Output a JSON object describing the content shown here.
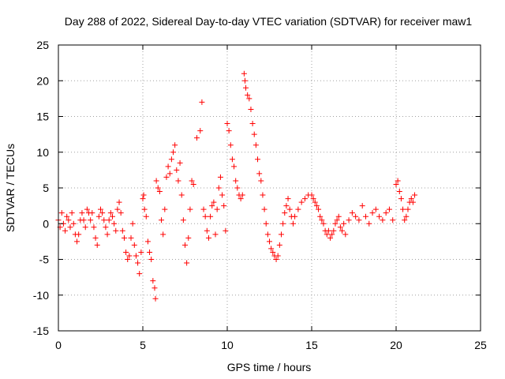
{
  "chart_data": {
    "type": "scatter",
    "title": "Day 288 of 2022, Sidereal Day-to-day VTEC variation (SDTVAR) for receiver maw1",
    "xlabel": "GPS time / hours",
    "ylabel": "SDTVAR / TECUs",
    "xlim": [
      0,
      25
    ],
    "ylim": [
      -15,
      25
    ],
    "xticks": [
      0,
      5,
      10,
      15,
      20,
      25
    ],
    "yticks": [
      -15,
      -10,
      -5,
      0,
      5,
      10,
      15,
      20,
      25
    ],
    "grid": true,
    "legend": "none",
    "marker": "plus",
    "color": "#ff0000",
    "series": [
      {
        "name": "SDTVAR",
        "x": [
          0.0,
          0.1,
          0.2,
          0.3,
          0.4,
          0.5,
          0.6,
          0.7,
          0.8,
          0.9,
          1.0,
          1.1,
          1.2,
          1.3,
          1.4,
          1.5,
          1.6,
          1.7,
          1.8,
          1.9,
          2.0,
          2.1,
          2.2,
          2.3,
          2.4,
          2.5,
          2.6,
          2.7,
          2.8,
          2.9,
          3.0,
          3.1,
          3.2,
          3.3,
          3.4,
          3.5,
          3.6,
          3.7,
          3.8,
          3.9,
          4.0,
          4.1,
          4.2,
          4.3,
          4.4,
          4.5,
          4.6,
          4.7,
          4.8,
          4.9,
          5.0,
          5.05,
          5.1,
          5.2,
          5.3,
          5.4,
          5.5,
          5.6,
          5.7,
          5.75,
          5.8,
          5.9,
          6.0,
          6.1,
          6.2,
          6.3,
          6.4,
          6.5,
          6.6,
          6.7,
          6.8,
          6.9,
          7.0,
          7.1,
          7.2,
          7.3,
          7.4,
          7.5,
          7.6,
          7.7,
          7.8,
          7.9,
          8.0,
          8.2,
          8.4,
          8.5,
          8.6,
          8.7,
          8.8,
          8.9,
          9.0,
          9.1,
          9.2,
          9.3,
          9.4,
          9.5,
          9.6,
          9.7,
          9.8,
          9.9,
          10.0,
          10.1,
          10.2,
          10.3,
          10.4,
          10.5,
          10.6,
          10.7,
          10.8,
          10.9,
          11.0,
          11.05,
          11.1,
          11.2,
          11.3,
          11.4,
          11.5,
          11.6,
          11.7,
          11.8,
          11.9,
          12.0,
          12.1,
          12.2,
          12.3,
          12.4,
          12.5,
          12.6,
          12.7,
          12.8,
          12.9,
          13.0,
          13.1,
          13.2,
          13.3,
          13.4,
          13.5,
          13.6,
          13.7,
          13.8,
          13.9,
          14.0,
          14.2,
          14.4,
          14.6,
          14.8,
          15.0,
          15.1,
          15.2,
          15.3,
          15.4,
          15.5,
          15.6,
          15.7,
          15.8,
          15.9,
          16.0,
          16.1,
          16.2,
          16.3,
          16.4,
          16.5,
          16.6,
          16.7,
          16.8,
          16.9,
          17.0,
          17.2,
          17.4,
          17.6,
          17.8,
          18.0,
          18.2,
          18.4,
          18.6,
          18.8,
          19.0,
          19.2,
          19.4,
          19.6,
          19.8,
          20.0,
          20.1,
          20.2,
          20.3,
          20.4,
          20.5,
          20.6,
          20.7,
          20.8,
          20.9,
          21.0,
          21.1
        ],
        "y": [
          0.5,
          -0.5,
          1.5,
          0.0,
          -1.0,
          1.0,
          0.5,
          -0.5,
          1.5,
          0.0,
          -1.5,
          -2.5,
          -1.5,
          0.5,
          1.5,
          0.5,
          -0.5,
          2.0,
          1.5,
          0.5,
          1.5,
          -0.5,
          -2.0,
          -3.0,
          1.0,
          2.0,
          1.5,
          0.5,
          -0.5,
          -1.5,
          0.5,
          1.5,
          1.0,
          0.0,
          -1.0,
          2.0,
          3.0,
          1.5,
          -1.0,
          -2.0,
          -4.0,
          -5.0,
          -4.5,
          -2.0,
          0.0,
          -3.0,
          -4.5,
          -5.5,
          -7.0,
          -4.0,
          3.5,
          4.0,
          2.0,
          1.0,
          -2.5,
          -4.0,
          -5.0,
          -8.0,
          -9.0,
          -10.5,
          6.0,
          5.0,
          4.5,
          0.5,
          -1.5,
          2.0,
          6.5,
          8.0,
          7.0,
          9.0,
          10.0,
          11.0,
          7.5,
          6.0,
          8.5,
          4.0,
          0.5,
          -3.0,
          -5.5,
          -2.0,
          2.0,
          6.0,
          5.5,
          12.0,
          13.0,
          17.0,
          2.0,
          1.0,
          -1.0,
          -2.0,
          1.0,
          2.5,
          3.0,
          -1.5,
          2.0,
          5.0,
          6.5,
          4.0,
          2.5,
          -1.0,
          14.0,
          13.0,
          11.0,
          9.0,
          8.0,
          6.0,
          5.0,
          4.0,
          3.5,
          4.0,
          21.0,
          20.0,
          19.0,
          18.0,
          17.5,
          16.0,
          14.0,
          12.5,
          11.0,
          9.0,
          7.0,
          6.0,
          4.0,
          2.0,
          0.0,
          -1.5,
          -2.5,
          -3.5,
          -4.0,
          -4.5,
          -5.0,
          -4.5,
          -3.0,
          -1.5,
          0.0,
          1.5,
          2.5,
          3.5,
          2.0,
          1.0,
          0.0,
          1.0,
          2.0,
          3.0,
          3.5,
          4.0,
          4.0,
          3.5,
          3.0,
          2.5,
          2.0,
          1.0,
          0.5,
          0.0,
          -1.0,
          -1.5,
          -1.0,
          -2.0,
          -1.5,
          -1.0,
          0.0,
          0.5,
          1.0,
          -0.5,
          -1.0,
          0.0,
          -1.5,
          0.5,
          1.5,
          1.0,
          0.5,
          2.5,
          1.0,
          0.0,
          1.5,
          2.0,
          1.0,
          0.5,
          1.5,
          2.0,
          0.5,
          5.5,
          6.0,
          4.5,
          3.5,
          2.0,
          0.5,
          1.0,
          2.0,
          3.0,
          3.5,
          3.0,
          4.0
        ]
      }
    ]
  }
}
